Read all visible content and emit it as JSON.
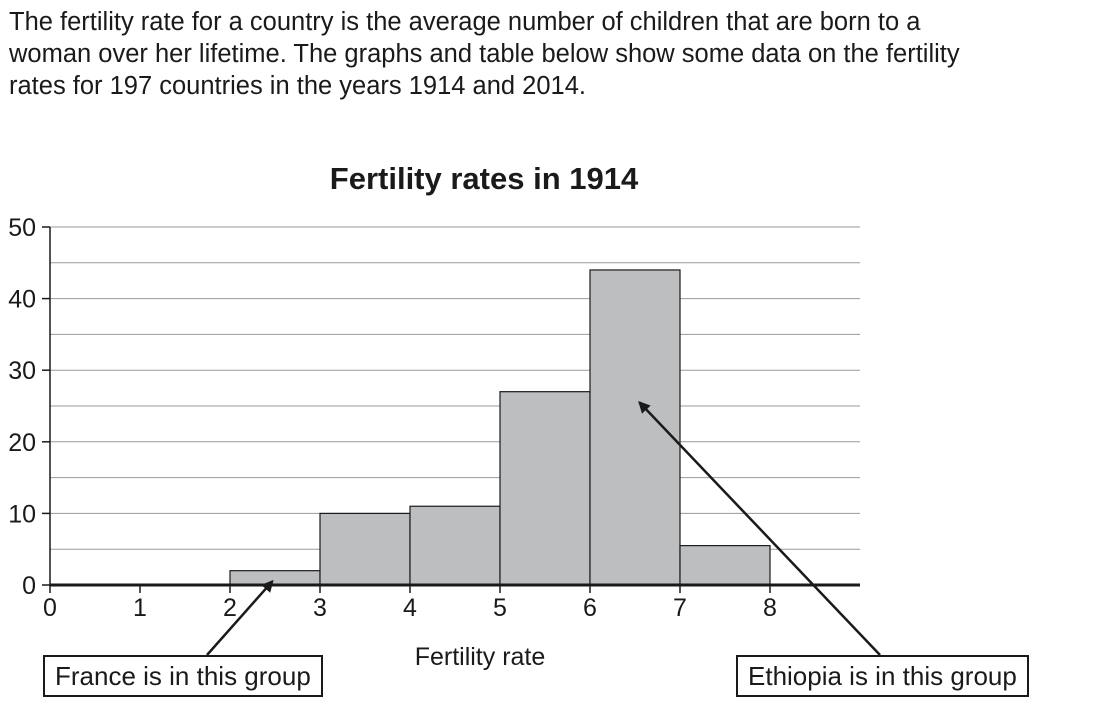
{
  "intro": [
    "The fertility rate for a country is the average number of children that are born to a",
    "woman over her lifetime. The graphs and table below show some data on the fertility",
    "rates for 197 countries in the years 1914 and 2014."
  ],
  "chart_data": {
    "type": "bar",
    "title": "Fertility rates in 1914",
    "xlabel": "Fertility rate",
    "ylabel": "",
    "xlim": [
      0,
      9
    ],
    "ylim": [
      0,
      50
    ],
    "x_ticks": [
      "0",
      "1",
      "2",
      "3",
      "4",
      "5",
      "6",
      "7",
      "8"
    ],
    "y_ticks": [
      "0",
      "10",
      "20",
      "30",
      "40",
      "50"
    ],
    "bins": [
      {
        "from": 2,
        "to": 3,
        "value": 2
      },
      {
        "from": 3,
        "to": 4,
        "value": 10
      },
      {
        "from": 4,
        "to": 5,
        "value": 11
      },
      {
        "from": 5,
        "to": 6,
        "value": 27
      },
      {
        "from": 6,
        "to": 7,
        "value": 44
      },
      {
        "from": 7,
        "to": 8,
        "value": 5.5
      }
    ],
    "annotations": [
      {
        "text": "France is in this group",
        "target_bin": "2-3"
      },
      {
        "text": "Ethiopia is in this group",
        "target_bin": "6-7"
      }
    ],
    "colors": {
      "bar": "#bdbec0",
      "grid": "#9a9a9a",
      "ink": "#1a1a1a"
    }
  }
}
